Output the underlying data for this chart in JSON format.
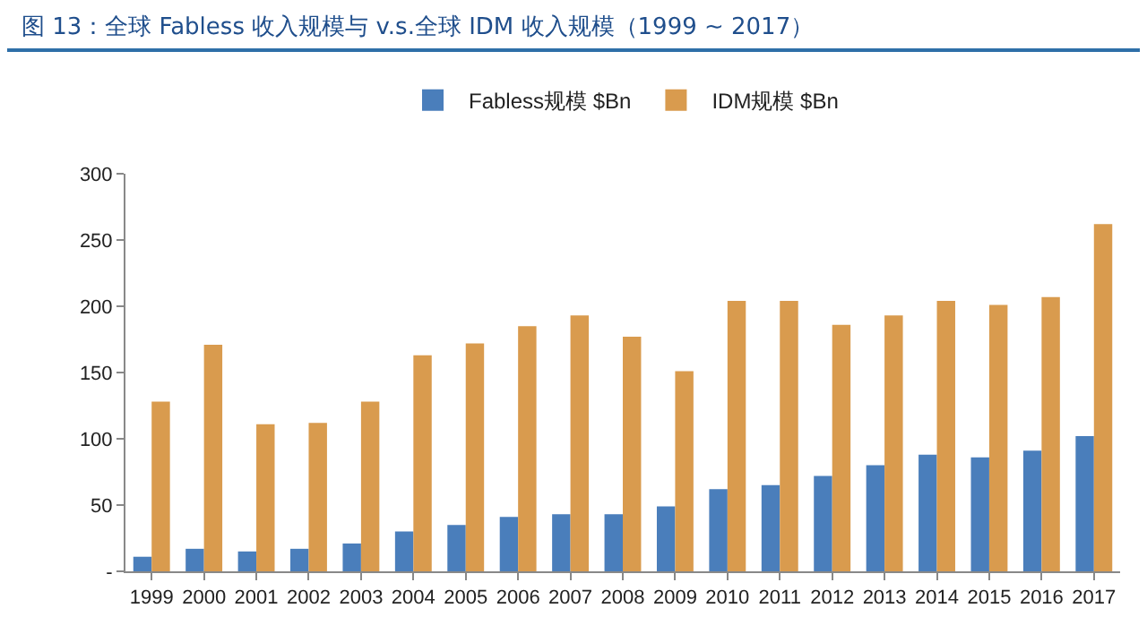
{
  "chart_data": {
    "type": "bar",
    "title": "图 13：全球 Fabless 收入规模与 v.s.全球 IDM 收入规模（1999 ~ 2017）",
    "categories": [
      "1999",
      "2000",
      "2001",
      "2002",
      "2003",
      "2004",
      "2005",
      "2006",
      "2007",
      "2008",
      "2009",
      "2010",
      "2011",
      "2012",
      "2013",
      "2014",
      "2015",
      "2016",
      "2017"
    ],
    "series": [
      {
        "name": "Fabless规模 $Bn",
        "color": "#4a7ebb",
        "values": [
          11,
          17,
          15,
          17,
          21,
          30,
          35,
          41,
          43,
          43,
          49,
          62,
          65,
          72,
          80,
          88,
          86,
          91,
          102
        ]
      },
      {
        "name": "IDM规模 $Bn",
        "color": "#d99b4e",
        "values": [
          128,
          171,
          111,
          112,
          128,
          163,
          172,
          185,
          193,
          177,
          151,
          204,
          204,
          186,
          193,
          204,
          201,
          207,
          262
        ]
      }
    ],
    "ylim": [
      0,
      300
    ],
    "yticks": [
      {
        "value": 0,
        "label": "-"
      },
      50,
      100,
      150,
      200,
      250,
      300
    ],
    "grid": false,
    "legend": "top"
  }
}
